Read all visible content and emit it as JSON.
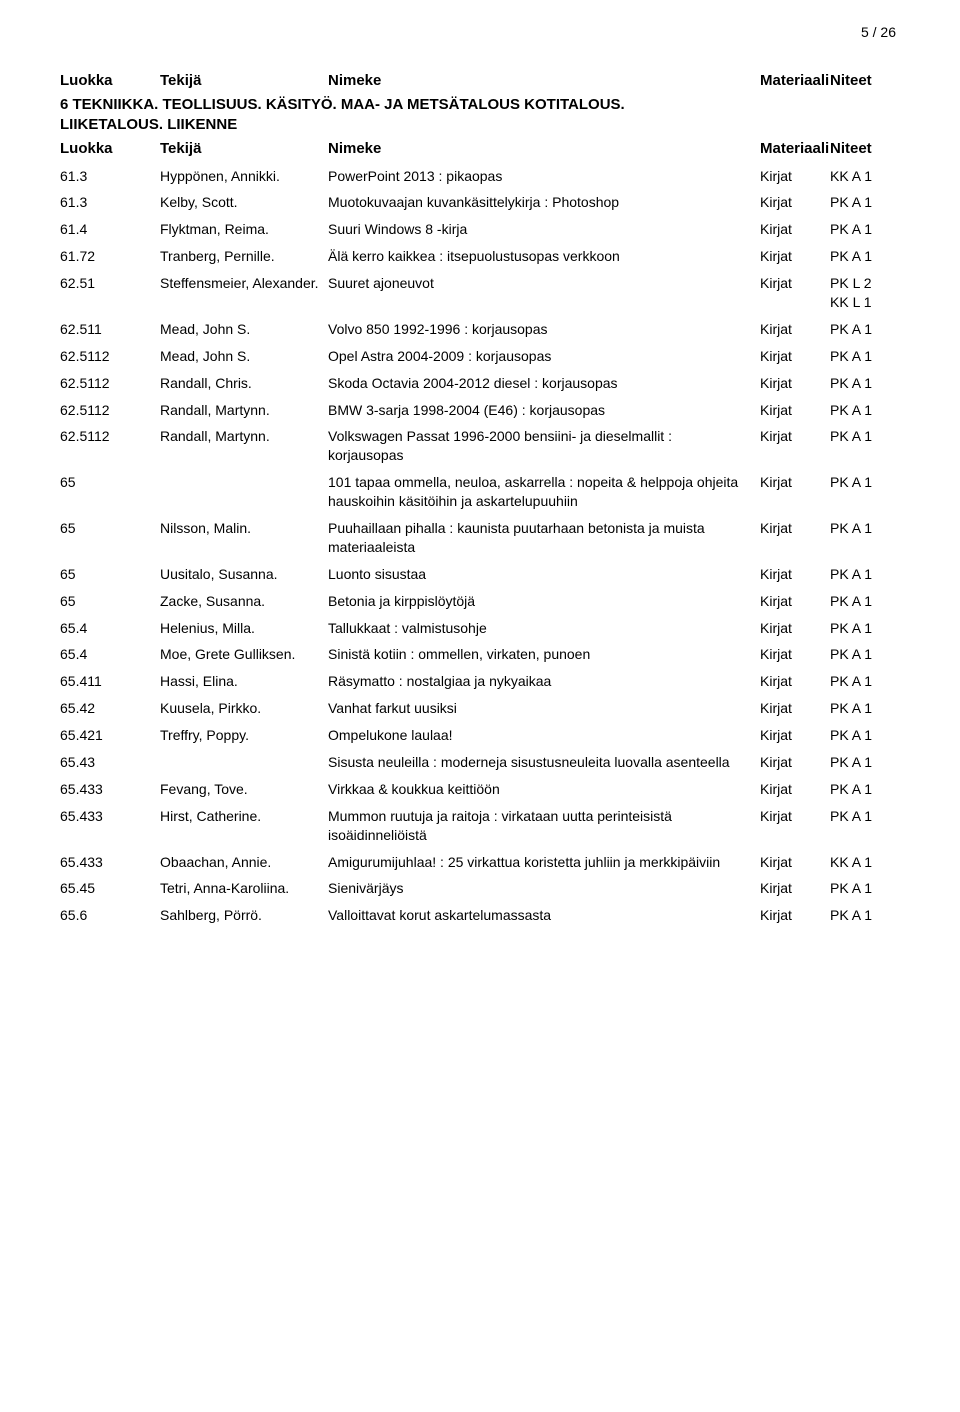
{
  "page_number": "5 / 26",
  "columns": {
    "luokka": "Luokka",
    "tekija": "Tekijä",
    "nimeke": "Nimeke",
    "materiaali": "Materiaali",
    "niteet": "Niteet"
  },
  "section_title_line1": "6 TEKNIIKKA. TEOLLISUUS. KÄSITYÖ. MAA- JA METSÄTALOUS KOTITALOUS.",
  "section_title_line2": "LIIKETALOUS. LIIKENNE",
  "rows": [
    {
      "luokka": "61.3",
      "tekija": "Hyppönen, Annikki.",
      "nimeke": "PowerPoint 2013 : pikaopas",
      "mat": "Kirjat",
      "nit": "KK A 1"
    },
    {
      "luokka": "61.3",
      "tekija": "Kelby, Scott.",
      "nimeke": "Muotokuvaajan kuvankäsittelykirja : Photoshop",
      "mat": "Kirjat",
      "nit": "PK A 1"
    },
    {
      "luokka": "61.4",
      "tekija": "Flyktman, Reima.",
      "nimeke": "Suuri Windows 8 -kirja",
      "mat": "Kirjat",
      "nit": "PK A 1"
    },
    {
      "luokka": "61.72",
      "tekija": "Tranberg, Pernille.",
      "nimeke": "Älä kerro kaikkea : itsepuolustusopas verkkoon",
      "mat": "Kirjat",
      "nit": "PK A 1"
    },
    {
      "luokka": "62.51",
      "tekija": "Steffensmeier, Alexander.",
      "nimeke": "Suuret ajoneuvot",
      "mat": "Kirjat",
      "nit": "PK L 2\nKK L 1"
    },
    {
      "luokka": "62.511",
      "tekija": "Mead, John S.",
      "nimeke": "Volvo 850 1992-1996 : korjausopas",
      "mat": "Kirjat",
      "nit": "PK A 1"
    },
    {
      "luokka": "62.5112",
      "tekija": "Mead, John S.",
      "nimeke": "Opel Astra 2004-2009 : korjausopas",
      "mat": "Kirjat",
      "nit": "PK A 1"
    },
    {
      "luokka": "62.5112",
      "tekija": "Randall, Chris.",
      "nimeke": "Skoda Octavia 2004-2012 diesel : korjausopas",
      "mat": "Kirjat",
      "nit": "PK A 1"
    },
    {
      "luokka": "62.5112",
      "tekija": "Randall, Martynn.",
      "nimeke": "BMW 3-sarja 1998-2004 (E46) : korjausopas",
      "mat": "Kirjat",
      "nit": "PK A 1"
    },
    {
      "luokka": "62.5112",
      "tekija": "Randall, Martynn.",
      "nimeke": "Volkswagen Passat 1996-2000 bensiini- ja dieselmallit : korjausopas",
      "mat": "Kirjat",
      "nit": "PK A 1"
    },
    {
      "luokka": "65",
      "tekija": "",
      "nimeke": "101 tapaa ommella, neuloa, askarrella : nopeita & helppoja ohjeita hauskoihin käsitöihin ja askartelupuuhiin",
      "mat": "Kirjat",
      "nit": "PK A 1"
    },
    {
      "luokka": "65",
      "tekija": "Nilsson, Malin.",
      "nimeke": "Puuhaillaan pihalla : kaunista puutarhaan betonista ja muista materiaaleista",
      "mat": "Kirjat",
      "nit": "PK A 1"
    },
    {
      "luokka": "65",
      "tekija": "Uusitalo, Susanna.",
      "nimeke": "Luonto sisustaa",
      "mat": "Kirjat",
      "nit": "PK A 1"
    },
    {
      "luokka": "65",
      "tekija": "Zacke, Susanna.",
      "nimeke": "Betonia ja kirppislöytöjä",
      "mat": "Kirjat",
      "nit": "PK A 1"
    },
    {
      "luokka": "65.4",
      "tekija": "Helenius, Milla.",
      "nimeke": "Tallukkaat : valmistusohje",
      "mat": "Kirjat",
      "nit": "PK A 1"
    },
    {
      "luokka": "65.4",
      "tekija": "Moe, Grete Gulliksen.",
      "nimeke": "Sinistä kotiin : ommellen, virkaten, punoen",
      "mat": "Kirjat",
      "nit": "PK A 1"
    },
    {
      "luokka": "65.411",
      "tekija": "Hassi, Elina.",
      "nimeke": "Räsymatto : nostalgiaa ja nykyaikaa",
      "mat": "Kirjat",
      "nit": "PK A 1"
    },
    {
      "luokka": "65.42",
      "tekija": "Kuusela, Pirkko.",
      "nimeke": "Vanhat farkut uusiksi",
      "mat": "Kirjat",
      "nit": "PK A 1"
    },
    {
      "luokka": "65.421",
      "tekija": "Treffry, Poppy.",
      "nimeke": "Ompelukone laulaa!",
      "mat": "Kirjat",
      "nit": "PK A 1"
    },
    {
      "luokka": "65.43",
      "tekija": "",
      "nimeke": "Sisusta neuleilla : moderneja sisustusneuleita luovalla asenteella",
      "mat": "Kirjat",
      "nit": "PK A 1"
    },
    {
      "luokka": "65.433",
      "tekija": "Fevang, Tove.",
      "nimeke": "Virkkaa & koukkua keittiöön",
      "mat": "Kirjat",
      "nit": "PK A 1"
    },
    {
      "luokka": "65.433",
      "tekija": "Hirst, Catherine.",
      "nimeke": "Mummon ruutuja ja raitoja : virkataan uutta perinteisistä isoäidinneliöistä",
      "mat": "Kirjat",
      "nit": "PK A 1"
    },
    {
      "luokka": "65.433",
      "tekija": "Obaachan, Annie.",
      "nimeke": "Amigurumijuhlaa! : 25 virkattua koristetta juhliin ja merkkipäiviin",
      "mat": "Kirjat",
      "nit": "KK A 1"
    },
    {
      "luokka": "65.45",
      "tekija": "Tetri, Anna-Karoliina.",
      "nimeke": "Sienivärjäys",
      "mat": "Kirjat",
      "nit": "PK A 1"
    },
    {
      "luokka": "65.6",
      "tekija": "Sahlberg, Pörrö.",
      "nimeke": "Valloittavat korut askartelumassasta",
      "mat": "Kirjat",
      "nit": "PK A 1"
    }
  ]
}
